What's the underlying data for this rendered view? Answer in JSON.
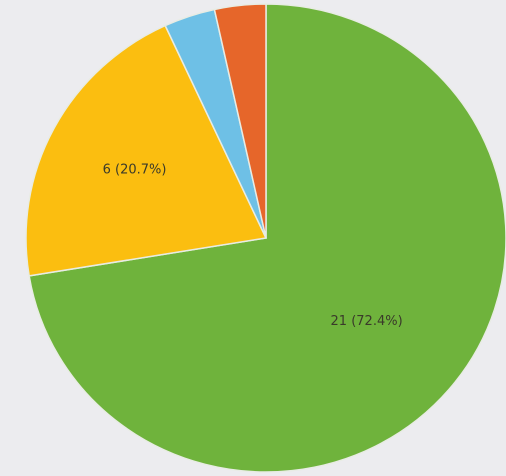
{
  "chart_data": {
    "type": "pie",
    "title": "",
    "slices": [
      {
        "value": 21,
        "label": "21 (72.4%)",
        "color": "#6fb33c"
      },
      {
        "value": 6,
        "label": "6 (20.7%)",
        "color": "#fbbe10"
      },
      {
        "value": 1,
        "label": "",
        "color": "#6ec0e6"
      },
      {
        "value": 1,
        "label": "",
        "color": "#e6662a"
      }
    ],
    "start_angle_deg": 0,
    "direction": "clockwise"
  }
}
